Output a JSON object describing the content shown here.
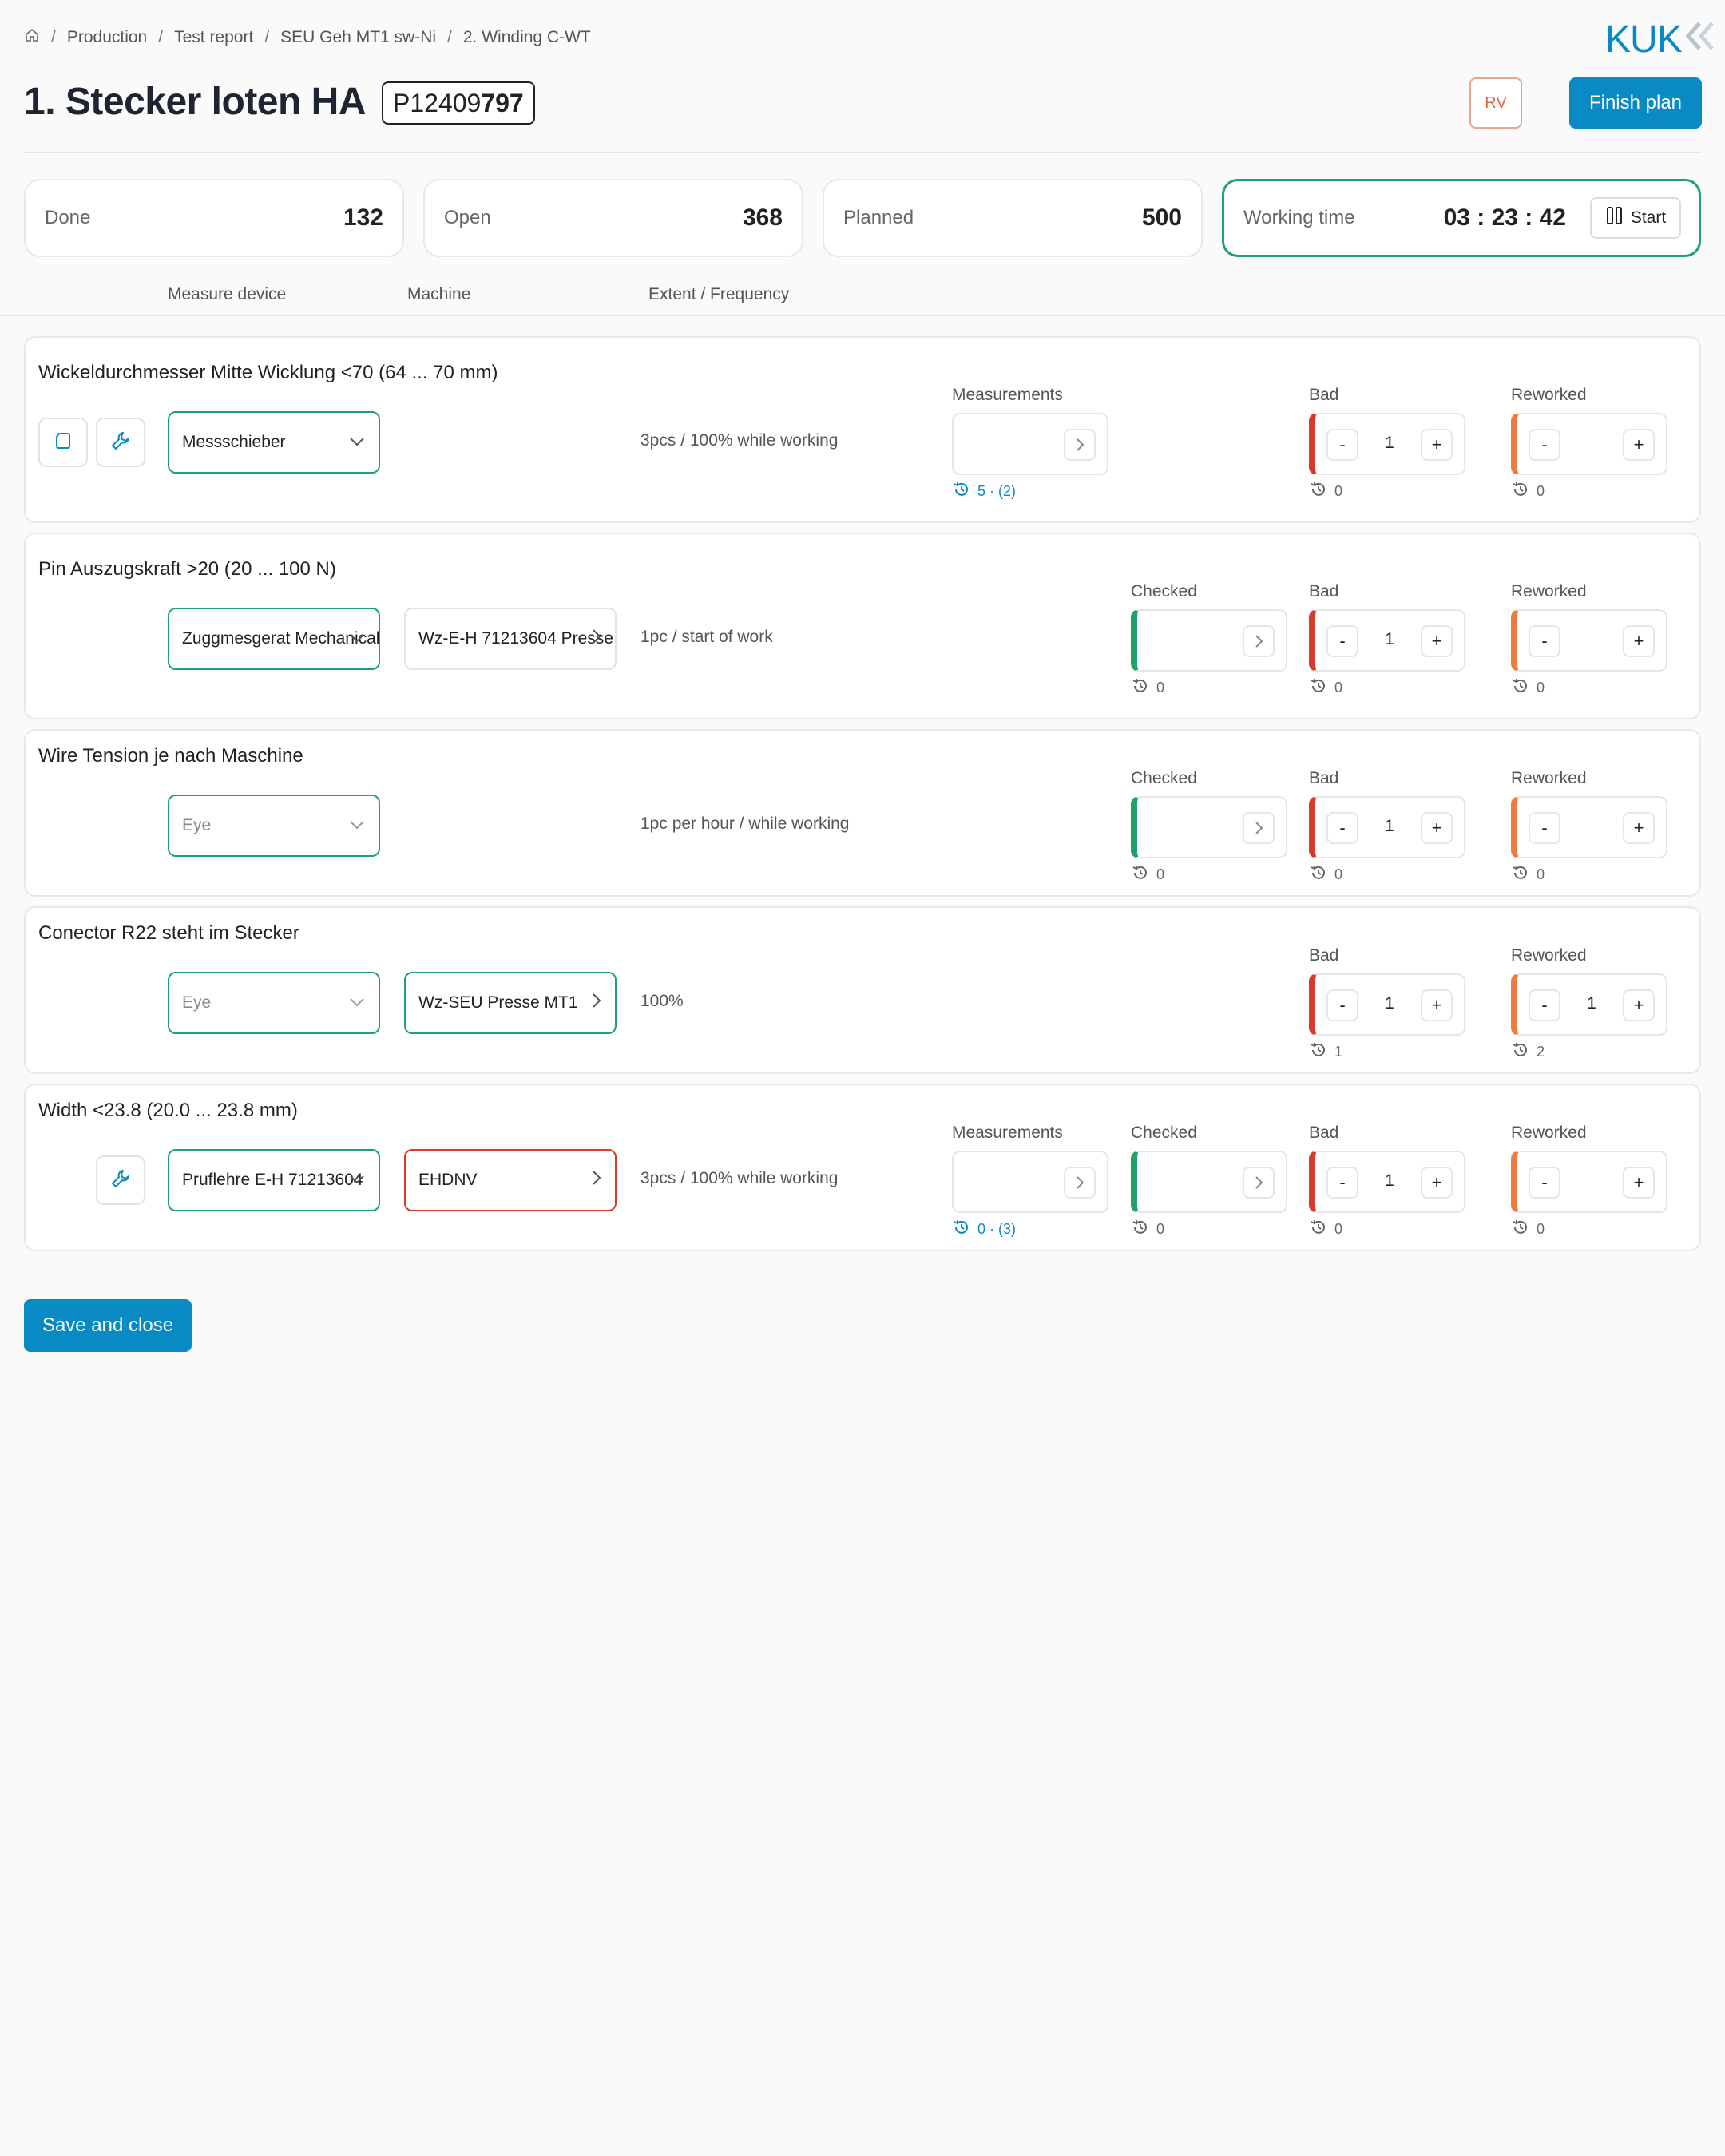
{
  "breadcrumb": {
    "items": [
      "Production",
      "Test report",
      "SEU Geh MT1 sw-Ni",
      "2. Winding C-WT"
    ],
    "separator": "/"
  },
  "logo": {
    "text": "KUK"
  },
  "header": {
    "title": "1. Stecker loten HA",
    "order_prefix": "P12409",
    "order_suffix": "797",
    "rv_badge": "RV",
    "finish_label": "Finish plan"
  },
  "stats": {
    "done": {
      "label": "Done",
      "value": "132"
    },
    "open": {
      "label": "Open",
      "value": "368"
    },
    "planned": {
      "label": "Planned",
      "value": "500"
    },
    "working": {
      "label": "Working time",
      "value": "03 : 23 : 42",
      "start_label": "Start"
    }
  },
  "columns": {
    "measure_device": "Measure device",
    "machine": "Machine",
    "extent": "Extent / Frequency"
  },
  "labels": {
    "measurements": "Measurements",
    "checked": "Checked",
    "bad": "Bad",
    "reworked": "Reworked",
    "minus": "-",
    "plus": "+"
  },
  "rows": [
    {
      "title": "Wickeldurchmesser Mitte Wicklung <70 (64 ... 70 mm)",
      "device": "Messschieber",
      "frequency": "3pcs / 100% while working",
      "measurements_hist": "5 · (2)",
      "bad_value": "1",
      "bad_hist": "0",
      "reworked_value": "",
      "reworked_hist": "0"
    },
    {
      "title": "Pin Auszugskraft >20 (20 ... 100 N)",
      "device": "Zuggmesgerat Mechanical",
      "machine": "Wz-E-H 71213604 Presse",
      "frequency": "1pc / start of work",
      "checked_hist": "0",
      "bad_value": "1",
      "bad_hist": "0",
      "reworked_value": "",
      "reworked_hist": "0"
    },
    {
      "title": "Wire Tension je nach Maschine",
      "device": "Eye",
      "frequency": "1pc per hour / while working",
      "checked_hist": "0",
      "bad_value": "1",
      "bad_hist": "0",
      "reworked_value": "",
      "reworked_hist": "0"
    },
    {
      "title": "Conector R22 steht im Stecker",
      "device": "Eye",
      "machine": "Wz-SEU Presse MT1",
      "frequency": "100%",
      "bad_value": "1",
      "bad_hist": "1",
      "reworked_value": "1",
      "reworked_hist": "2"
    },
    {
      "title": "Width <23.8 (20.0 ... 23.8 mm)",
      "device": "Pruflehre E-H 71213604",
      "machine": "EHDNV",
      "frequency": "3pcs / 100% while working",
      "measurements_hist": "0 · (3)",
      "checked_hist": "0",
      "bad_value": "1",
      "bad_hist": "0",
      "reworked_value": "",
      "reworked_hist": "0"
    }
  ],
  "footer": {
    "save_label": "Save and close"
  },
  "colors": {
    "accent": "#0a8ac4",
    "ok": "#1ea46a",
    "bad": "#d9392c",
    "reworked": "#ef7b3c"
  }
}
